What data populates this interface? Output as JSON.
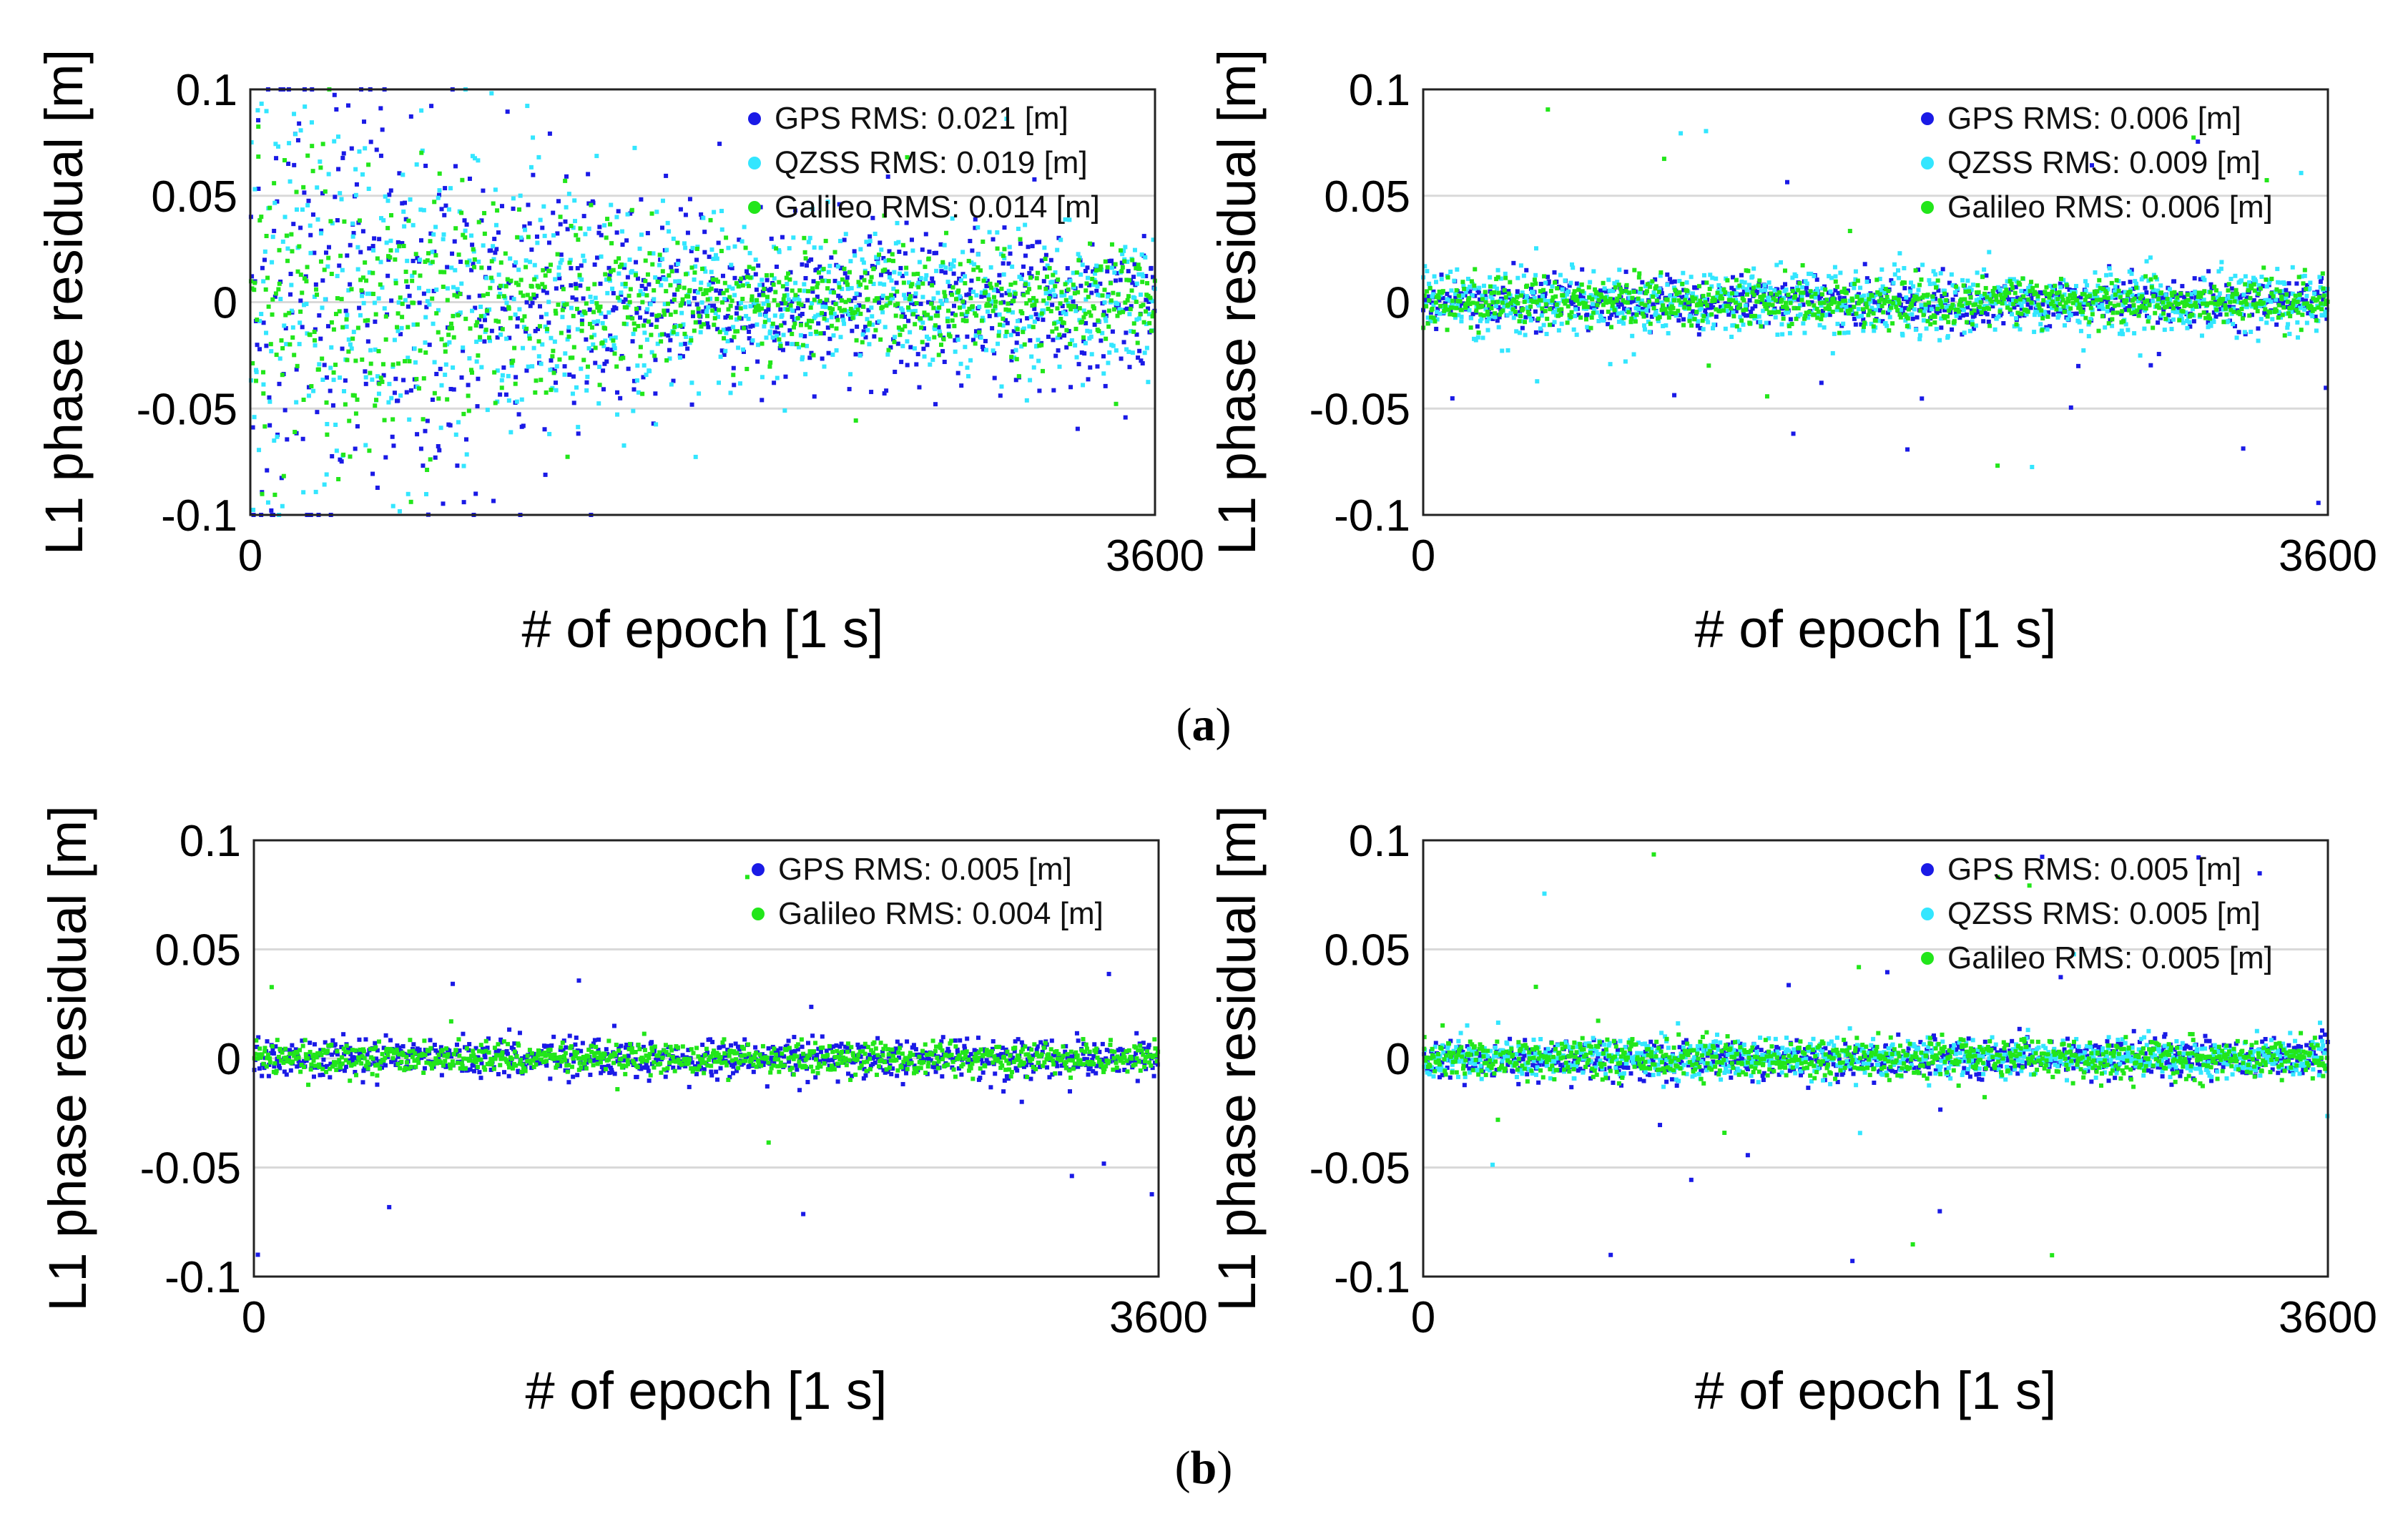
{
  "figure": {
    "caption_a": "(a)",
    "caption_a_letter": "a",
    "caption_b": "(b)",
    "caption_b_letter": "b"
  },
  "colors": {
    "gps": "#1a1ae6",
    "qzss": "#33e6ff",
    "galileo": "#22e61a",
    "grid": "#d9d9d9",
    "axis": "#222222"
  },
  "chart_data": [
    {
      "id": "a-left",
      "type": "scatter",
      "panel": "a",
      "xlabel": "# of epoch [1 s]",
      "ylabel": "L1 phase residual [m]",
      "xlim": [
        0,
        3600
      ],
      "ylim": [
        -0.1,
        0.1
      ],
      "xticks": [
        0,
        3600
      ],
      "xtick_labels": [
        "0",
        "3600"
      ],
      "yticks": [
        0.1,
        0.05,
        0,
        -0.05,
        -0.1
      ],
      "ytick_labels": [
        "0.1",
        "0.05",
        "0",
        "-0.05",
        "-0.1"
      ],
      "grid": true,
      "legend_position": "top-right",
      "series": [
        {
          "name": "GPS",
          "label": "GPS RMS: 0.021 [m]",
          "rms": 0.021,
          "color_key": "gps"
        },
        {
          "name": "QZSS",
          "label": "QZSS RMS: 0.019 [m]",
          "rms": 0.019,
          "color_key": "qzss"
        },
        {
          "name": "Galileo",
          "label": "Galileo RMS: 0.014 [m]",
          "rms": 0.014,
          "color_key": "galileo"
        }
      ]
    },
    {
      "id": "a-right",
      "type": "scatter",
      "panel": "a",
      "xlabel": "# of epoch [1 s]",
      "ylabel": "L1 phase residual [m]",
      "xlim": [
        0,
        3600
      ],
      "ylim": [
        -0.1,
        0.1
      ],
      "xticks": [
        0,
        3600
      ],
      "xtick_labels": [
        "0",
        "3600"
      ],
      "yticks": [
        0.1,
        0.05,
        0,
        -0.05,
        -0.1
      ],
      "ytick_labels": [
        "0.1",
        "0.05",
        "0",
        "-0.05",
        "-0.1"
      ],
      "grid": true,
      "legend_position": "top-right",
      "series": [
        {
          "name": "GPS",
          "label": "GPS RMS: 0.006 [m]",
          "rms": 0.006,
          "color_key": "gps"
        },
        {
          "name": "QZSS",
          "label": "QZSS RMS: 0.009 [m]",
          "rms": 0.009,
          "color_key": "qzss"
        },
        {
          "name": "Galileo",
          "label": "Galileo RMS: 0.006 [m]",
          "rms": 0.006,
          "color_key": "galileo"
        }
      ]
    },
    {
      "id": "b-left",
      "type": "scatter",
      "panel": "b",
      "xlabel": "# of epoch [1 s]",
      "ylabel": "L1 phase residual [m]",
      "xlim": [
        0,
        3600
      ],
      "ylim": [
        -0.1,
        0.1
      ],
      "xticks": [
        0,
        3600
      ],
      "xtick_labels": [
        "0",
        "3600"
      ],
      "yticks": [
        0.1,
        0.05,
        0,
        -0.05,
        -0.1
      ],
      "ytick_labels": [
        "0.1",
        "0.05",
        "0",
        "-0.05",
        "-0.1"
      ],
      "grid": true,
      "legend_position": "top-right",
      "series": [
        {
          "name": "GPS",
          "label": "GPS RMS: 0.005 [m]",
          "rms": 0.005,
          "color_key": "gps"
        },
        {
          "name": "Galileo",
          "label": "Galileo RMS: 0.004 [m]",
          "rms": 0.004,
          "color_key": "galileo"
        }
      ]
    },
    {
      "id": "b-right",
      "type": "scatter",
      "panel": "b",
      "xlabel": "# of epoch [1 s]",
      "ylabel": "L1 phase residual [m]",
      "xlim": [
        0,
        3600
      ],
      "ylim": [
        -0.1,
        0.1
      ],
      "xticks": [
        0,
        3600
      ],
      "xtick_labels": [
        "0",
        "3600"
      ],
      "yticks": [
        0.1,
        0.05,
        0,
        -0.05,
        -0.1
      ],
      "ytick_labels": [
        "0.1",
        "0.05",
        "0",
        "-0.05",
        "-0.1"
      ],
      "grid": true,
      "legend_position": "top-right",
      "series": [
        {
          "name": "GPS",
          "label": "GPS RMS: 0.005 [m]",
          "rms": 0.005,
          "color_key": "gps"
        },
        {
          "name": "QZSS",
          "label": "QZSS RMS: 0.005 [m]",
          "rms": 0.005,
          "color_key": "qzss"
        },
        {
          "name": "Galileo",
          "label": "Galileo RMS: 0.005 [m]",
          "rms": 0.005,
          "color_key": "galileo"
        }
      ]
    }
  ]
}
